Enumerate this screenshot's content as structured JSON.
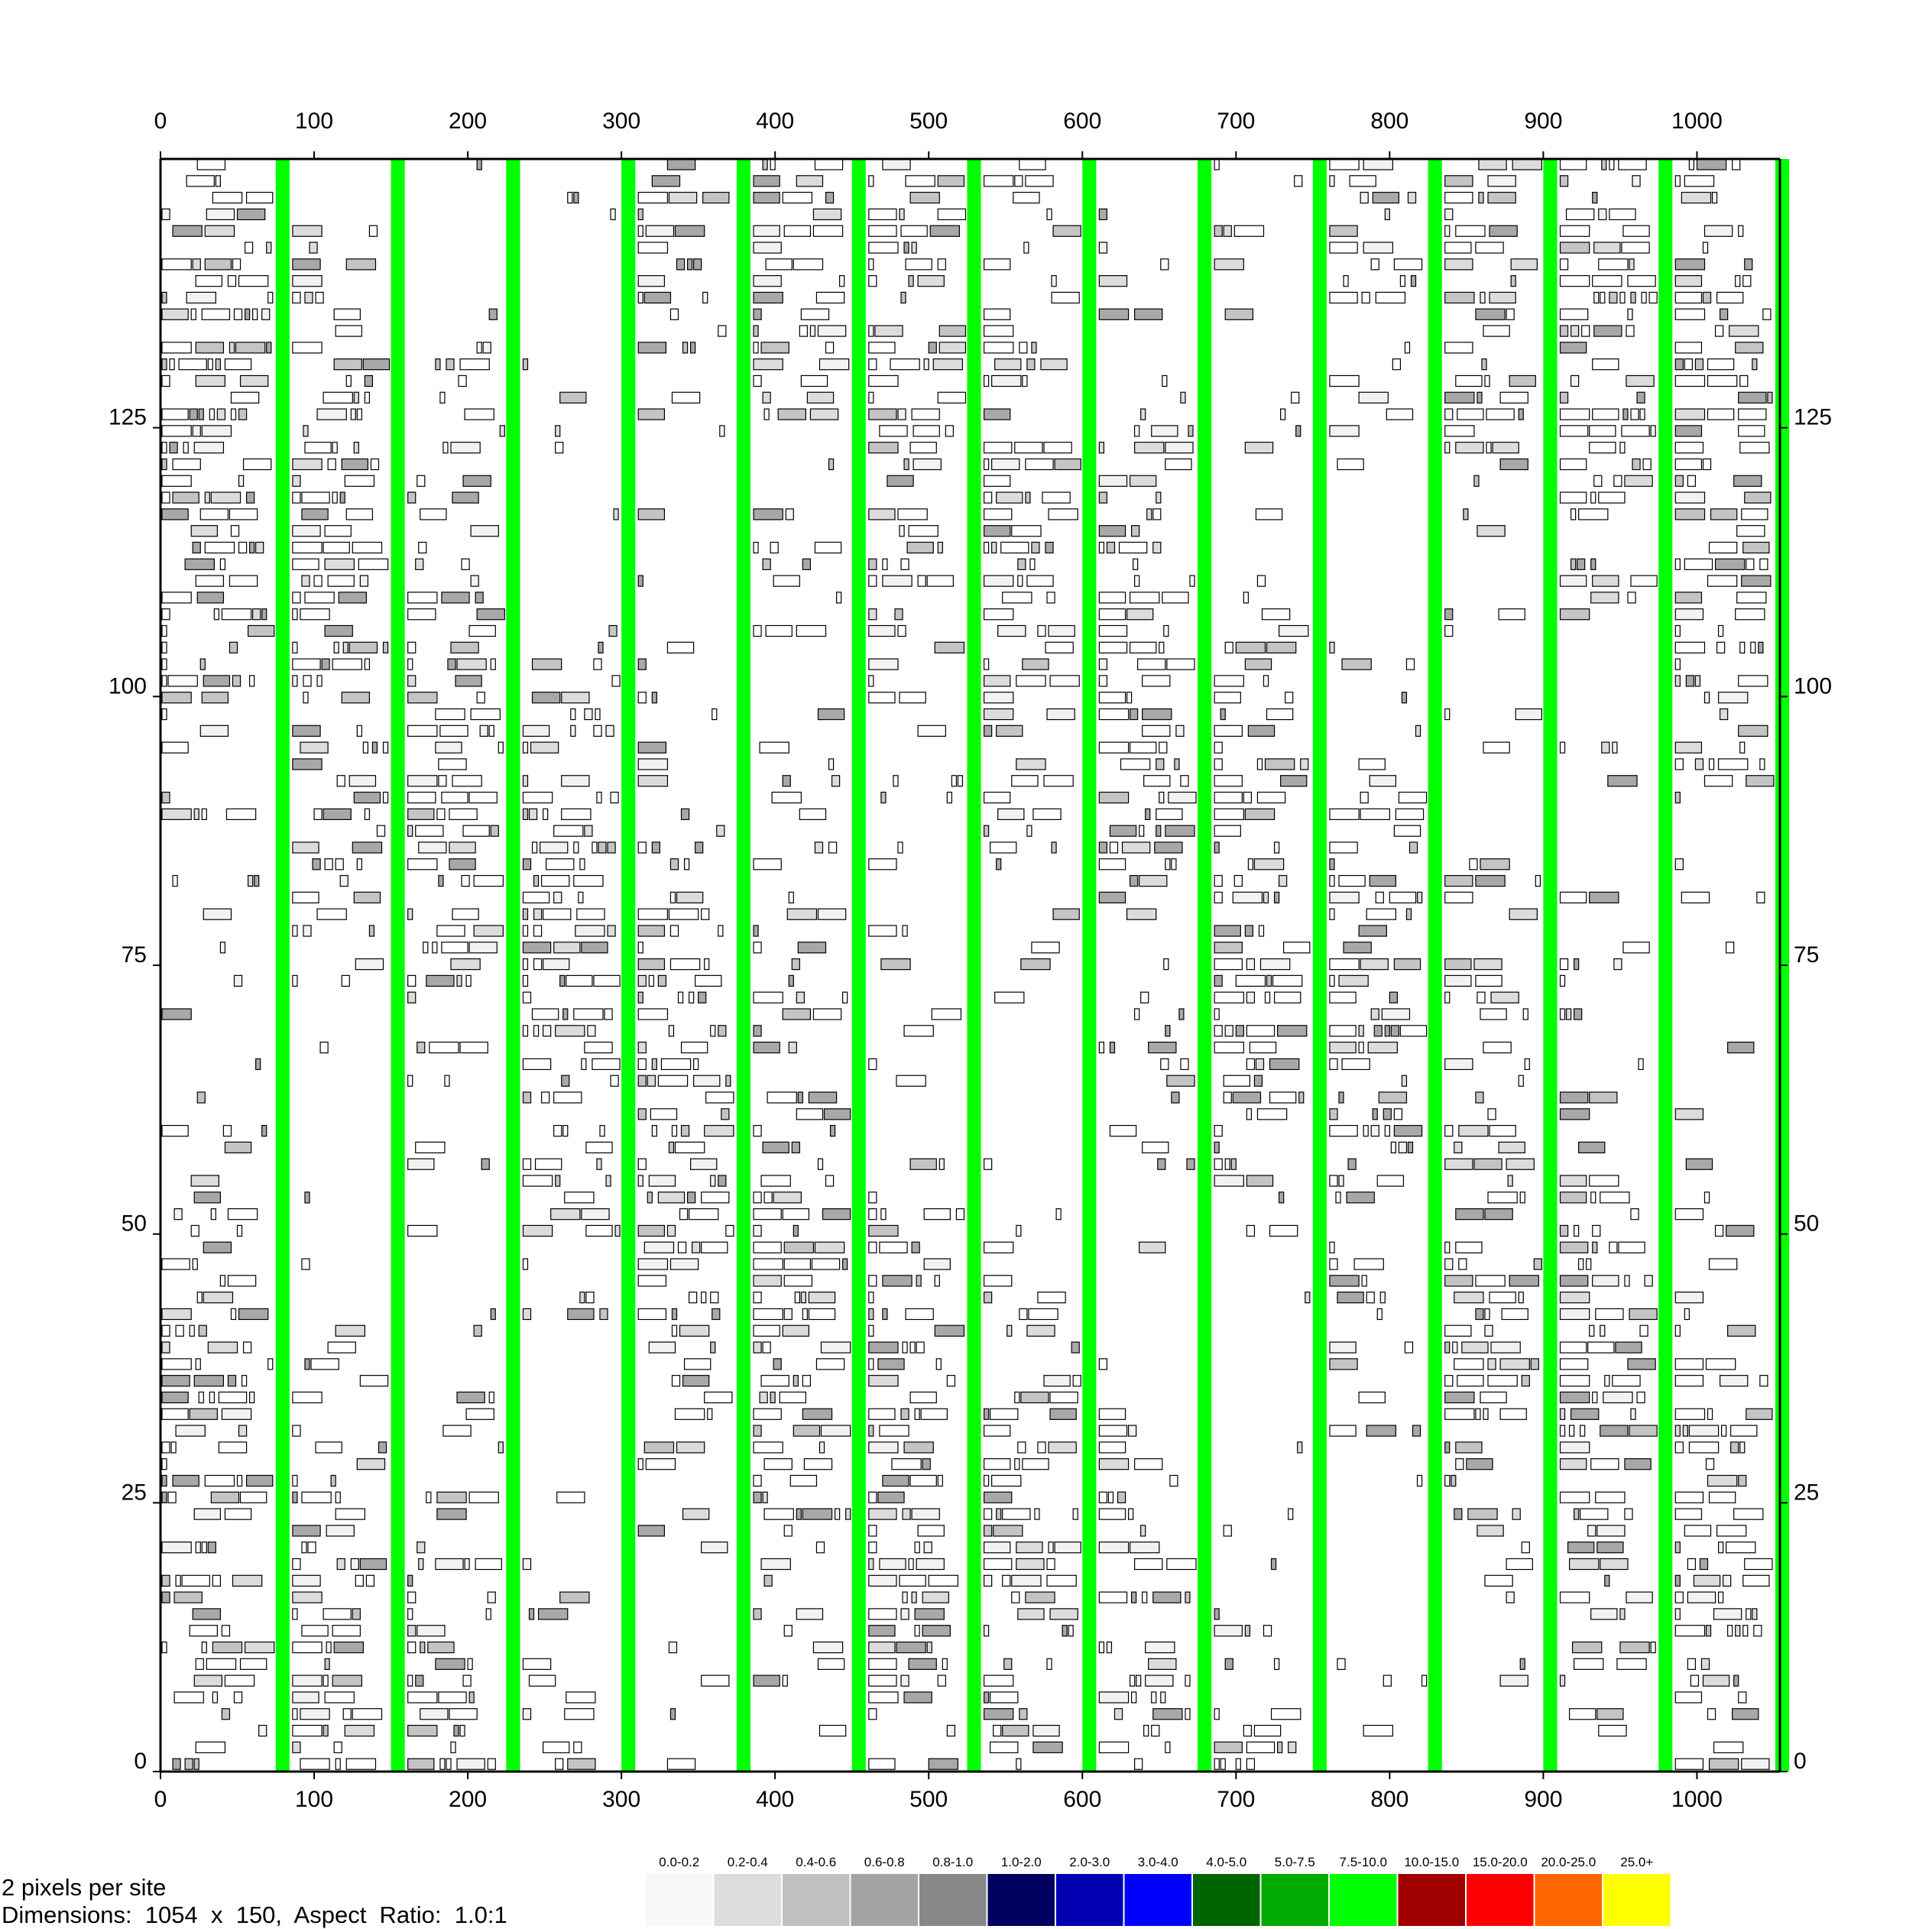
{
  "info": {
    "scale_text": "2 pixels per site",
    "dimensions_text": "Dimensions:  1054  x  150,  Aspect  Ratio:  1.0:1"
  },
  "colors": {
    "block_outline": "#000000",
    "channel": "#00ff00",
    "frame": "#000000"
  },
  "chart_data": {
    "type": "heatmap",
    "title": "",
    "xlabel": "",
    "ylabel": "",
    "xlim": [
      0,
      1054
    ],
    "ylim": [
      0,
      150
    ],
    "x_ticks": [
      0,
      100,
      200,
      300,
      400,
      500,
      600,
      700,
      800,
      900,
      1000
    ],
    "y_ticks": [
      0,
      25,
      50,
      75,
      100,
      125
    ],
    "channels_x": [
      75,
      150,
      225,
      300,
      375,
      450,
      525,
      600,
      675,
      750,
      825,
      900,
      975,
      1051
    ],
    "channel_width": 10,
    "legend": [
      {
        "label": "0.0-0.2",
        "color": "#f7f7f7"
      },
      {
        "label": "0.2-0.4",
        "color": "#dcdcdc"
      },
      {
        "label": "0.4-0.6",
        "color": "#c0c0c0"
      },
      {
        "label": "0.6-0.8",
        "color": "#a4a4a4"
      },
      {
        "label": "0.8-1.0",
        "color": "#888888"
      },
      {
        "label": "1.0-2.0",
        "color": "#000060"
      },
      {
        "label": "2.0-3.0",
        "color": "#0000b0"
      },
      {
        "label": "3.0-4.0",
        "color": "#0000ff"
      },
      {
        "label": "4.0-5.0",
        "color": "#006400"
      },
      {
        "label": "5.0-7.5",
        "color": "#00aa00"
      },
      {
        "label": "7.5-10.0",
        "color": "#00ff00"
      },
      {
        "label": "10.0-15.0",
        "color": "#a00000"
      },
      {
        "label": "15.0-20.0",
        "color": "#ff0000"
      },
      {
        "label": "20.0-25.0",
        "color": "#ff6600"
      },
      {
        "label": "25.0+",
        "color": "#ffff00"
      }
    ]
  }
}
